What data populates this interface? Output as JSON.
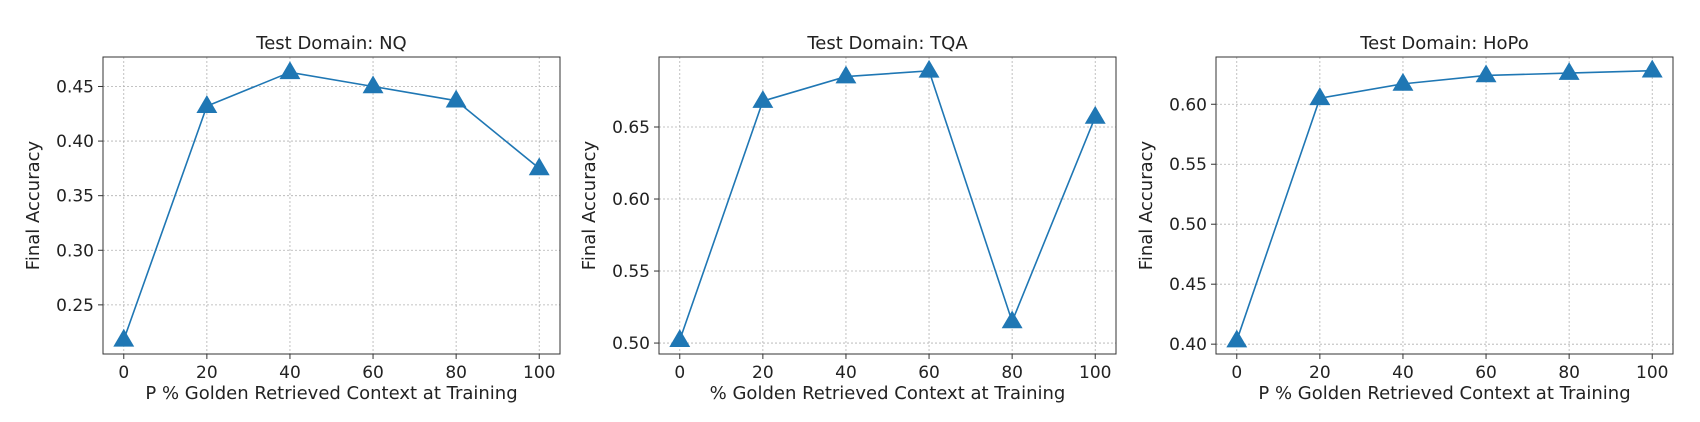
{
  "chart_data": [
    {
      "type": "line",
      "title": "Test Domain: NQ",
      "xlabel": "P % Golden Retrieved Context at Training",
      "ylabel": "Final Accuracy",
      "x": [
        0,
        20,
        40,
        60,
        80,
        100
      ],
      "series": [
        {
          "values": [
            0.218,
            0.432,
            0.463,
            0.45,
            0.437,
            0.375
          ],
          "color": "#1f77b4",
          "marker": "triangle"
        }
      ],
      "xlim": [
        -5,
        105
      ],
      "ylim": [
        0.205,
        0.477
      ],
      "xticks": [
        0,
        20,
        40,
        60,
        80,
        100
      ],
      "yticks": [
        0.25,
        0.3,
        0.35,
        0.4,
        0.45
      ],
      "ytick_labels": [
        "0.25",
        "0.30",
        "0.35",
        "0.40",
        "0.45"
      ],
      "grid": true
    },
    {
      "type": "line",
      "title": "Test Domain: TQA",
      "xlabel": "% Golden Retrieved Context at Training",
      "ylabel": "Final Accuracy",
      "x": [
        0,
        20,
        40,
        60,
        80,
        100
      ],
      "series": [
        {
          "values": [
            0.502,
            0.668,
            0.685,
            0.689,
            0.515,
            0.657
          ],
          "color": "#1f77b4",
          "marker": "triangle"
        }
      ],
      "xlim": [
        -5,
        105
      ],
      "ylim": [
        0.4924,
        0.6986
      ],
      "xticks": [
        0,
        20,
        40,
        60,
        80,
        100
      ],
      "yticks": [
        0.5,
        0.55,
        0.6,
        0.65
      ],
      "ytick_labels": [
        "0.50",
        "0.55",
        "0.60",
        "0.65"
      ],
      "grid": true
    },
    {
      "type": "line",
      "title": "Test Domain: HoPo",
      "xlabel": "P % Golden Retrieved Context at Training",
      "ylabel": "Final Accuracy",
      "x": [
        0,
        20,
        40,
        60,
        80,
        100
      ],
      "series": [
        {
          "values": [
            0.403,
            0.605,
            0.617,
            0.624,
            0.626,
            0.628
          ],
          "color": "#1f77b4",
          "marker": "triangle"
        }
      ],
      "xlim": [
        -5,
        105
      ],
      "ylim": [
        0.3918,
        0.6394
      ],
      "xticks": [
        0,
        20,
        40,
        60,
        80,
        100
      ],
      "yticks": [
        0.4,
        0.45,
        0.5,
        0.55,
        0.6
      ],
      "ytick_labels": [
        "0.40",
        "0.45",
        "0.50",
        "0.55",
        "0.60"
      ],
      "grid": true
    }
  ]
}
